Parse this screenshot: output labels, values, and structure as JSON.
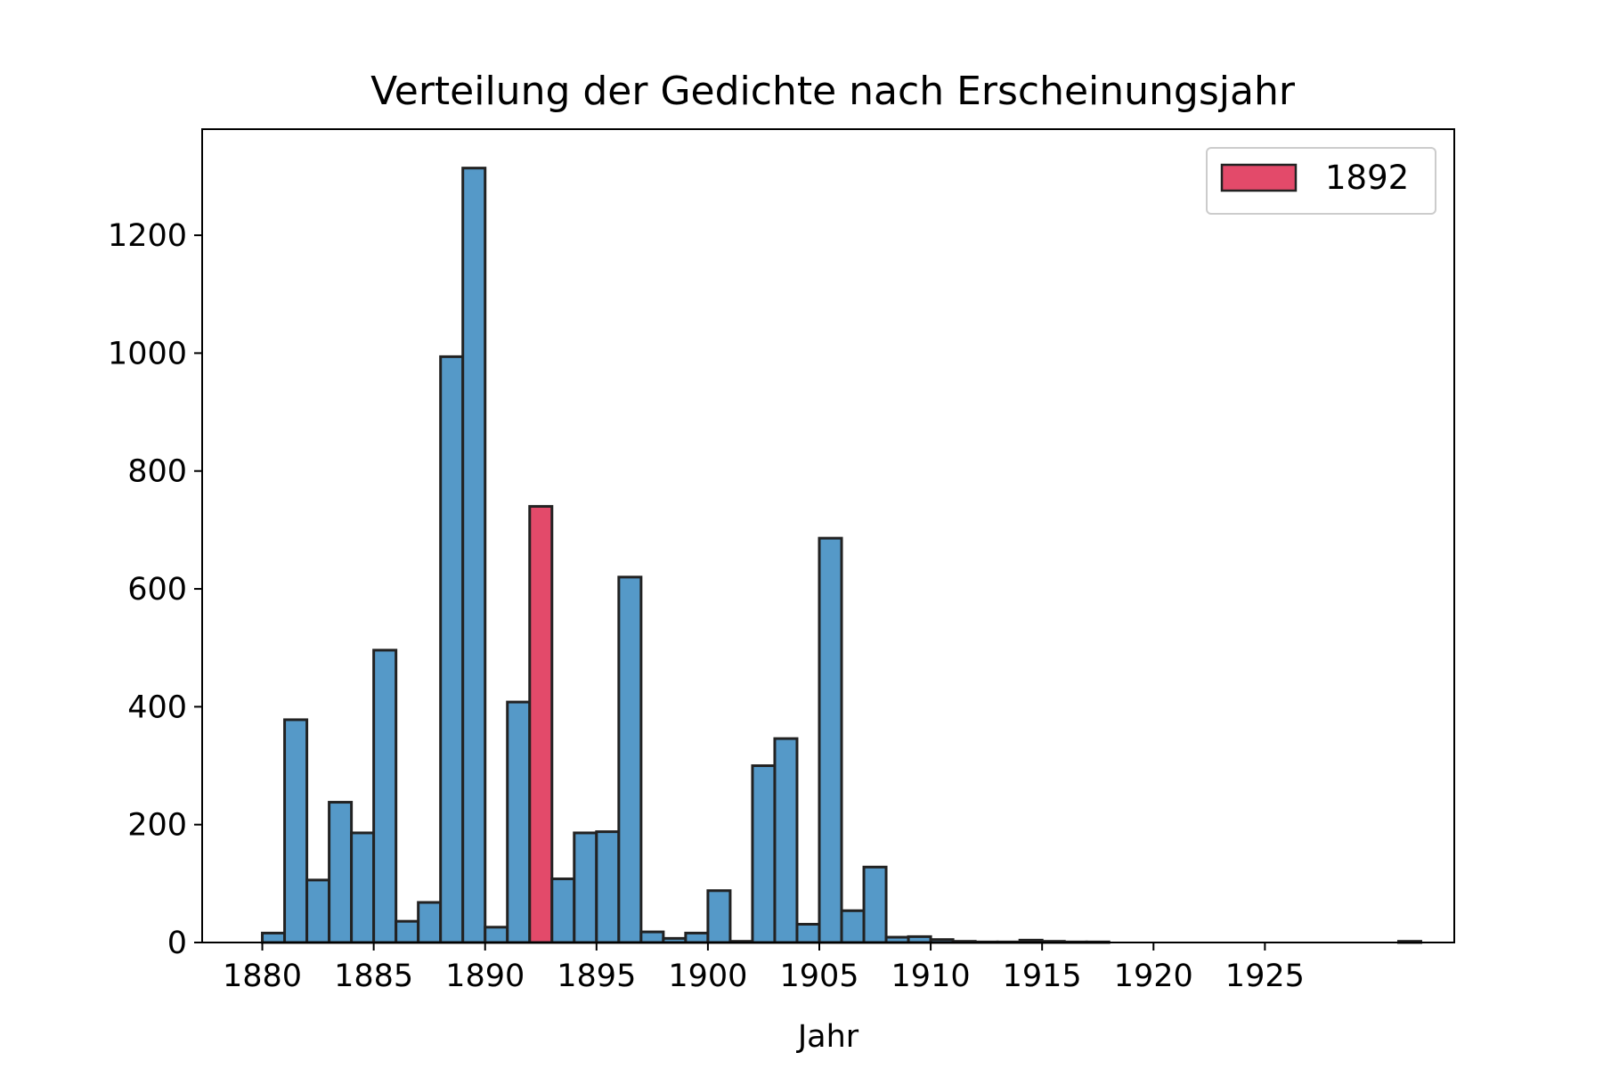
{
  "chart_data": {
    "type": "bar",
    "title": "Verteilung der Gedichte nach Erscheinungsjahr",
    "xlabel": "Jahr",
    "ylabel": "",
    "xlim": [
      1877.3,
      1933.5
    ],
    "ylim": [
      0,
      1380
    ],
    "x_ticks": [
      1880,
      1885,
      1890,
      1895,
      1900,
      1905,
      1910,
      1915,
      1920,
      1925
    ],
    "y_ticks": [
      0,
      200,
      400,
      600,
      800,
      1000,
      1200
    ],
    "grid": false,
    "legend": {
      "position": "top-right",
      "entries": [
        {
          "label": "1892",
          "color": "#e34a6a"
        }
      ]
    },
    "bar_width": 1,
    "bar_color": "#5599c8",
    "highlight_color": "#e34a6a",
    "edge_color": "#222222",
    "highlight_year": 1892,
    "x": [
      1881,
      1882,
      1883,
      1884,
      1885,
      1886,
      1887,
      1888,
      1889,
      1890,
      1891,
      1892,
      1893,
      1894,
      1895,
      1896,
      1897,
      1898,
      1899,
      1900,
      1901,
      1902,
      1903,
      1904,
      1905,
      1906,
      1907,
      1908,
      1909,
      1910,
      1911,
      1912,
      1913,
      1914,
      1915,
      1916,
      1917,
      1918,
      1919,
      1920,
      1921,
      1922,
      1923,
      1924,
      1925,
      1926,
      1927,
      1928,
      1929,
      1930,
      1931,
      1932
    ],
    "values": [
      16,
      378,
      106,
      238,
      186,
      496,
      36,
      68,
      994,
      1314,
      26,
      408,
      740,
      108,
      186,
      188,
      620,
      18,
      7,
      16,
      88,
      2,
      300,
      346,
      31,
      686,
      54,
      128,
      9,
      10,
      5,
      2,
      1,
      1,
      4,
      2,
      1,
      1,
      0,
      0,
      0,
      0,
      0,
      0,
      0,
      0,
      0,
      0,
      0,
      0,
      0,
      2
    ]
  }
}
